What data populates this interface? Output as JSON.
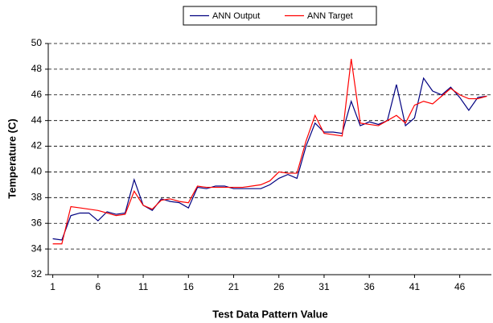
{
  "chart_data": {
    "type": "line",
    "x_label": "Test Data Pattern Value",
    "y_label": "Temperature (C)",
    "x": [
      1,
      2,
      3,
      4,
      5,
      6,
      7,
      8,
      9,
      10,
      11,
      12,
      13,
      14,
      15,
      16,
      17,
      18,
      19,
      20,
      21,
      22,
      23,
      24,
      25,
      26,
      27,
      28,
      29,
      30,
      31,
      32,
      33,
      34,
      35,
      36,
      37,
      38,
      39,
      40,
      41,
      42,
      43,
      44,
      45,
      46,
      47,
      48,
      49
    ],
    "xlim": [
      0.5,
      49.5
    ],
    "xticks": [
      1,
      6,
      11,
      16,
      21,
      26,
      31,
      36,
      41,
      46
    ],
    "ylim": [
      32,
      50
    ],
    "yticks": [
      32,
      34,
      36,
      38,
      40,
      42,
      44,
      46,
      48,
      50
    ],
    "grid": true,
    "legend": "top",
    "series": [
      {
        "name": "ANN Output",
        "color": "#000080",
        "values": [
          34.8,
          34.7,
          36.6,
          36.8,
          36.8,
          36.2,
          36.9,
          36.7,
          36.8,
          39.4,
          37.4,
          37.0,
          37.9,
          37.7,
          37.6,
          37.2,
          38.8,
          38.7,
          38.9,
          38.9,
          38.7,
          38.7,
          38.7,
          38.7,
          39.0,
          39.5,
          39.8,
          39.5,
          42.0,
          43.8,
          43.1,
          43.1,
          43.0,
          45.5,
          43.6,
          43.9,
          43.7,
          44.0,
          46.8,
          43.6,
          44.2,
          47.3,
          46.3,
          46.0,
          46.6,
          45.8,
          44.8,
          45.8,
          45.9
        ]
      },
      {
        "name": "ANN Target",
        "color": "#ff0000",
        "values": [
          34.4,
          34.4,
          37.3,
          37.2,
          37.1,
          37.0,
          36.8,
          36.6,
          36.7,
          38.5,
          37.4,
          37.1,
          37.8,
          37.9,
          37.7,
          37.6,
          38.9,
          38.8,
          38.8,
          38.8,
          38.8,
          38.8,
          38.9,
          39.0,
          39.3,
          40.0,
          39.9,
          39.9,
          42.4,
          44.4,
          43.0,
          42.9,
          42.8,
          48.8,
          43.8,
          43.7,
          43.6,
          44.0,
          44.4,
          43.8,
          45.2,
          45.5,
          45.3,
          45.9,
          46.5,
          46.0,
          45.7,
          45.7,
          45.9
        ]
      }
    ]
  }
}
